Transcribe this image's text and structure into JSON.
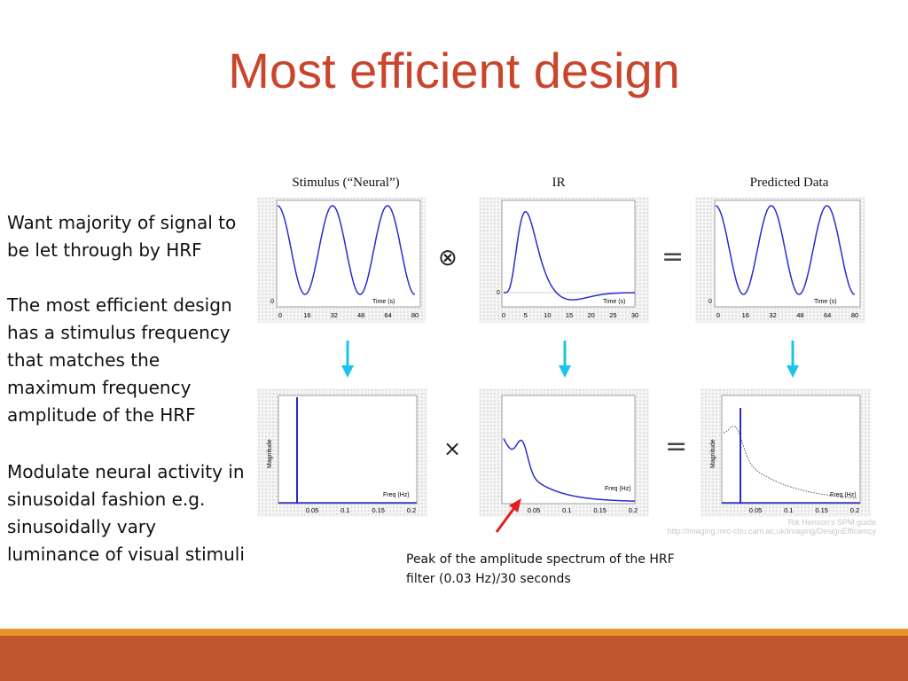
{
  "title": "Most efficient design",
  "paragraphs": [
    "Want majority of signal to be let through by HRF",
    "The most efficient design has a stimulus frequency that matches the maximum frequency amplitude of the HRF",
    "Modulate neural activity in sinusoidal fashion e.g. sinusoidally vary luminance of visual stimuli"
  ],
  "figure": {
    "column_titles": [
      "Stimulus (“Neural”)",
      "IR",
      "Predicted Data"
    ],
    "time_axis_label": "Time (s)",
    "time_ticks_stimulus": [
      "0",
      "16",
      "32",
      "48",
      "64",
      "80"
    ],
    "time_ticks_ir": [
      "0",
      "5",
      "10",
      "15",
      "20",
      "25",
      "30"
    ],
    "freq_axis_label": "Freq (Hz)",
    "freq_ticks": [
      "0.05",
      "0.1",
      "0.15",
      "0.2"
    ],
    "magnitude_label": "Magnitude",
    "zero_label": "0",
    "convolve_symbol": "⊗",
    "multiply_symbol": "×",
    "equals_symbol": "="
  },
  "caption": "Peak of the amplitude spectrum of the HRF filter (0.03 Hz)/30 seconds",
  "credit": {
    "line1": "Rik Henson's SPM guide",
    "line2": "http://imaging.mrc-cbu.cam.ac.uk/imaging/DesignEfficiency"
  },
  "colors": {
    "title": "#c9452c",
    "curve": "#2b2bd0",
    "arrow_down": "#19c6e6",
    "pointer_arrow": "#e02020",
    "footer_orange": "#e8942a",
    "footer_rust": "#c0572d"
  },
  "icons": [
    "arrow-down-icon",
    "red-pointer-arrow-icon"
  ]
}
